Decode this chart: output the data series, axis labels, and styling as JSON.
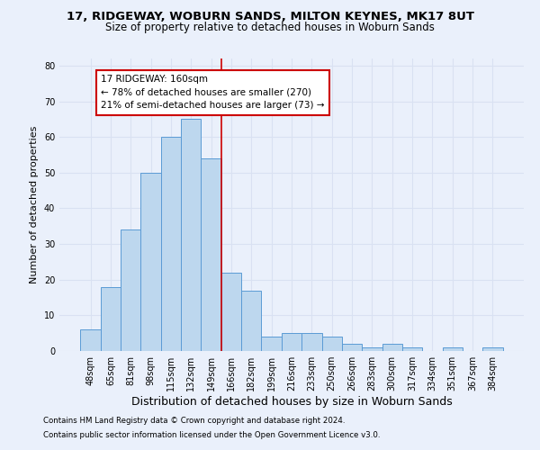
{
  "title": "17, RIDGEWAY, WOBURN SANDS, MILTON KEYNES, MK17 8UT",
  "subtitle": "Size of property relative to detached houses in Woburn Sands",
  "xlabel": "Distribution of detached houses by size in Woburn Sands",
  "ylabel": "Number of detached properties",
  "footnote1": "Contains HM Land Registry data © Crown copyright and database right 2024.",
  "footnote2": "Contains public sector information licensed under the Open Government Licence v3.0.",
  "bar_labels": [
    "48sqm",
    "65sqm",
    "81sqm",
    "98sqm",
    "115sqm",
    "132sqm",
    "149sqm",
    "166sqm",
    "182sqm",
    "199sqm",
    "216sqm",
    "233sqm",
    "250sqm",
    "266sqm",
    "283sqm",
    "300sqm",
    "317sqm",
    "334sqm",
    "351sqm",
    "367sqm",
    "384sqm"
  ],
  "bar_values": [
    6,
    18,
    34,
    50,
    60,
    65,
    54,
    22,
    17,
    4,
    5,
    5,
    4,
    2,
    1,
    2,
    1,
    0,
    1,
    0,
    1
  ],
  "bar_color": "#bdd7ee",
  "bar_edge_color": "#5b9bd5",
  "grid_color": "#d9e1f2",
  "background_color": "#eaf0fb",
  "annotation_text": "17 RIDGEWAY: 160sqm\n← 78% of detached houses are smaller (270)\n21% of semi-detached houses are larger (73) →",
  "annotation_box_color": "#ffffff",
  "annotation_border_color": "#cc0000",
  "vline_x": 6.5,
  "vline_color": "#cc0000",
  "ylim": [
    0,
    82
  ],
  "yticks": [
    0,
    10,
    20,
    30,
    40,
    50,
    60,
    70,
    80
  ],
  "title_fontsize": 9.5,
  "subtitle_fontsize": 8.5,
  "xlabel_fontsize": 9,
  "ylabel_fontsize": 8,
  "tick_fontsize": 7,
  "annot_fontsize": 7.5
}
